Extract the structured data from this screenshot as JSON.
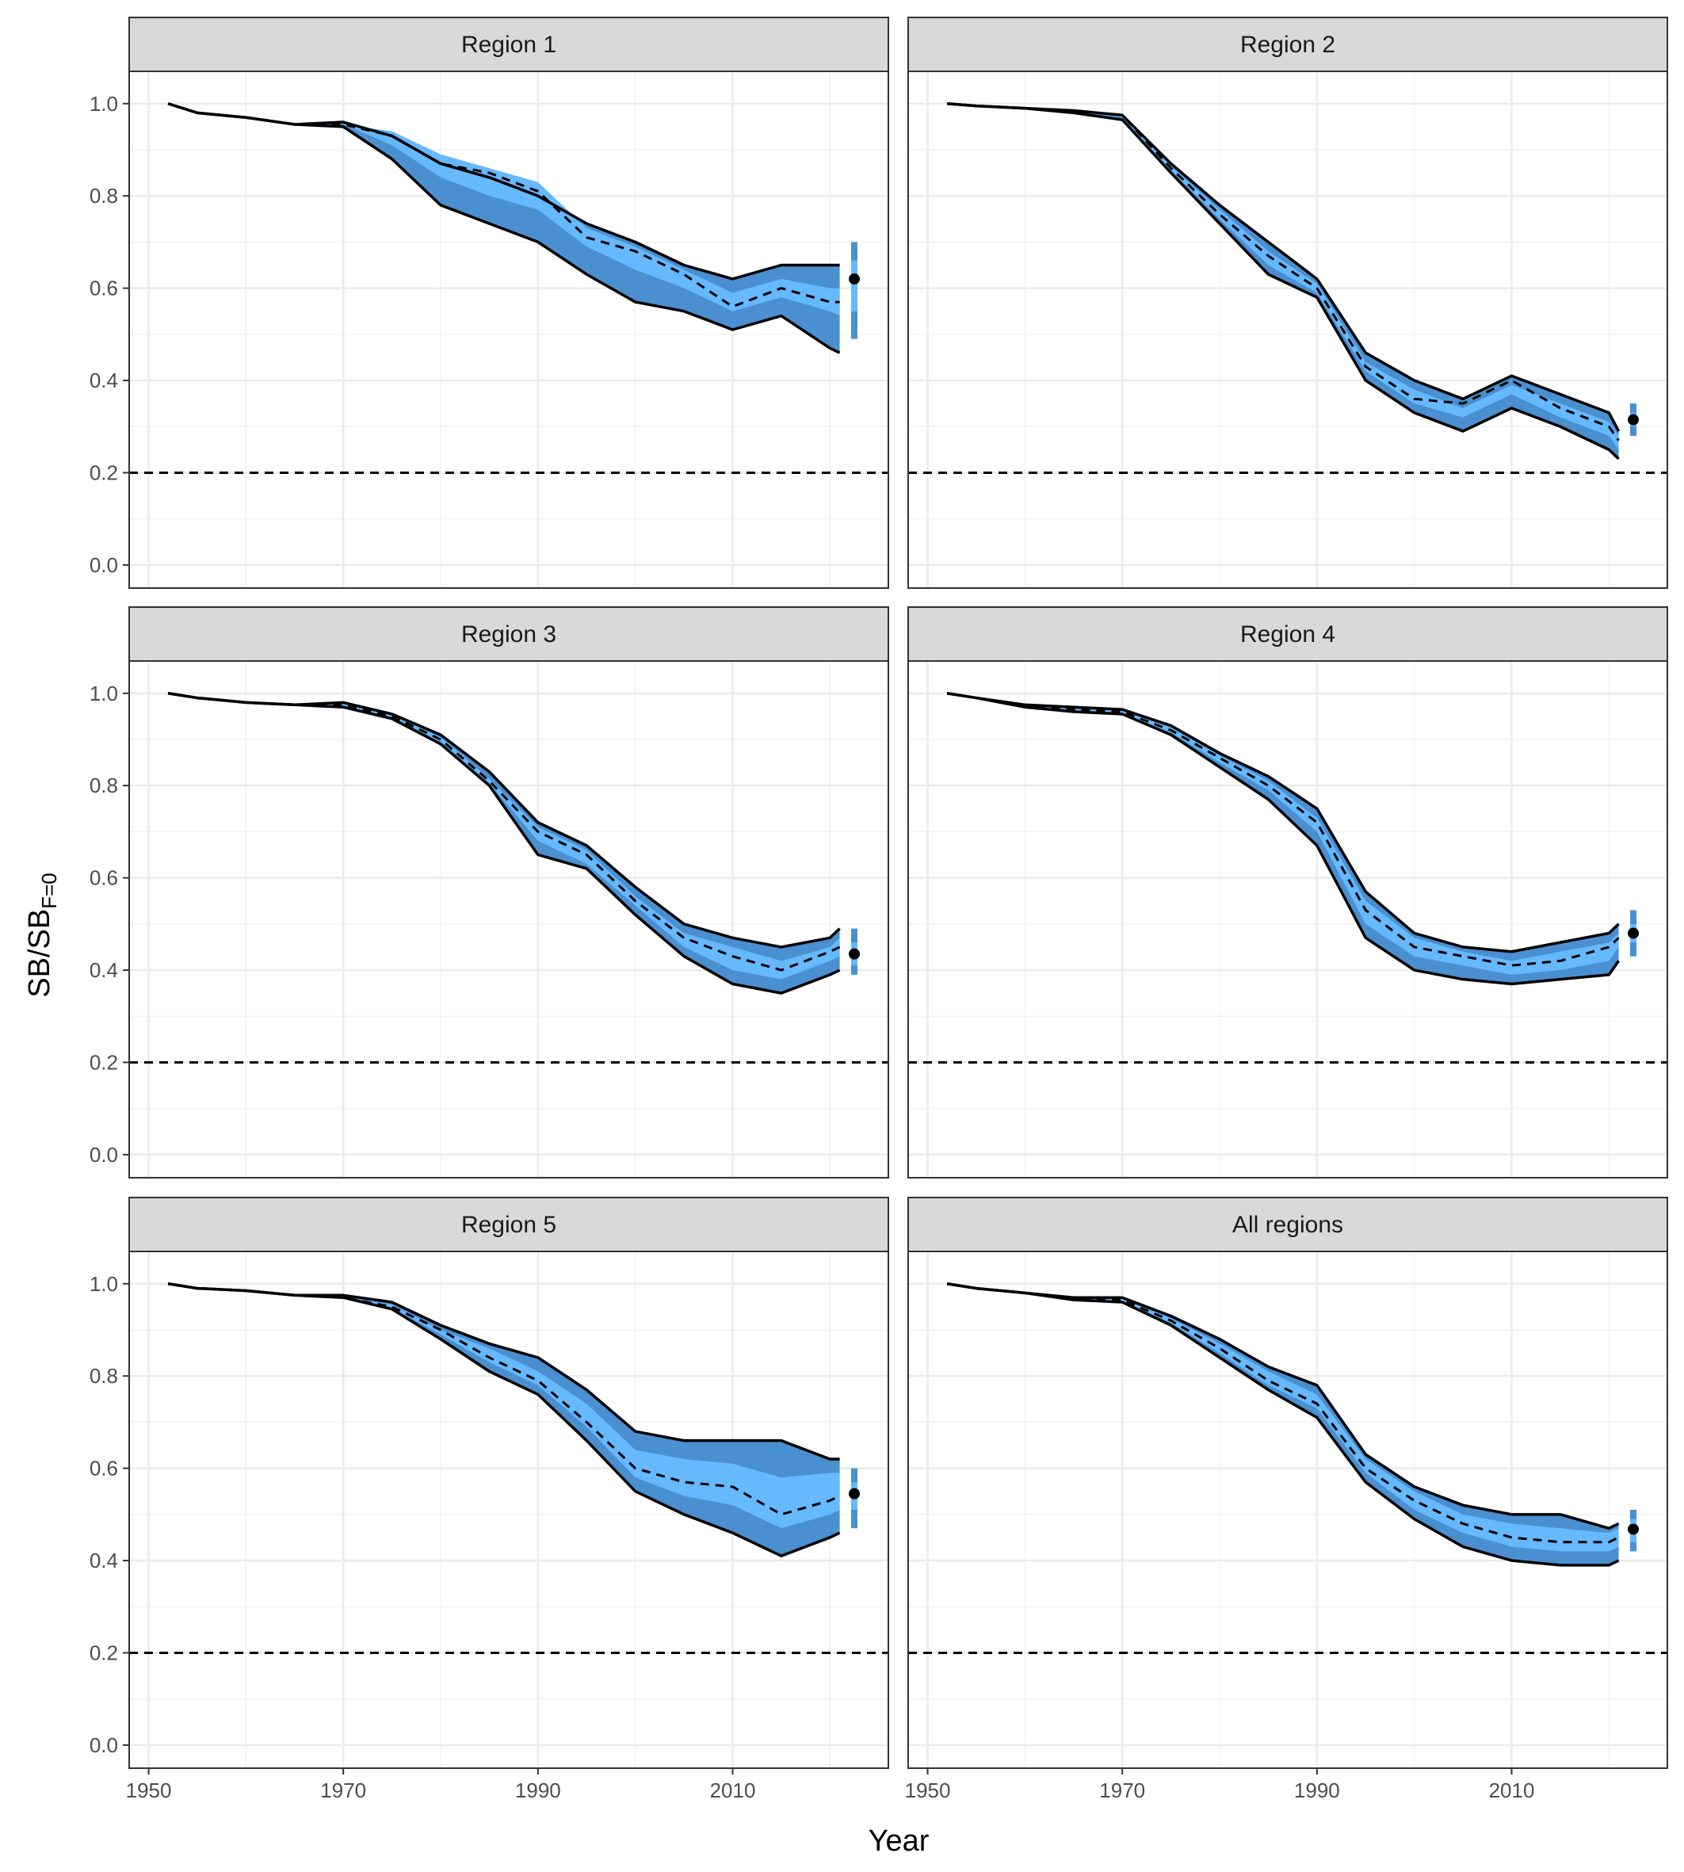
{
  "chart_data": {
    "type": "line",
    "layout": "facet grid, 3 rows x 2 columns, shared x axis (bottom) and y axis (left)",
    "xlabel": "Year",
    "ylabel": {
      "main": "SB/SB",
      "subscript": "F=0"
    },
    "xlim": [
      1948,
      2026
    ],
    "ylim": [
      -0.05,
      1.07
    ],
    "x_ticks": [
      1950,
      1970,
      1990,
      2010
    ],
    "x_tick_labels": [
      "1950",
      "1970",
      "1990",
      "2010"
    ],
    "y_ticks": [
      0.0,
      0.2,
      0.4,
      0.6,
      0.8,
      1.0
    ],
    "y_tick_labels": [
      "0.0",
      "0.2",
      "0.4",
      "0.6",
      "0.8",
      "1.0"
    ],
    "grid": true,
    "reference_line": {
      "y": 0.2,
      "style": "dashed"
    },
    "colors": {
      "outer_band": "#4a8fd0",
      "inner_band": "#66b8ff",
      "outline": "#000000",
      "median": "#000000",
      "strip_bg": "#d9d9d9",
      "grid": "#ebebeb",
      "panel_border": "#333333",
      "point": "#000000",
      "point_bar_outer": "#4a8fd0",
      "point_bar_inner": "#66b8ff"
    },
    "series_x": [
      1952,
      1955,
      1960,
      1965,
      1970,
      1975,
      1980,
      1985,
      1990,
      1995,
      2000,
      2005,
      2010,
      2015,
      2020,
      2021
    ],
    "panels": [
      {
        "title": "Region 1",
        "median": [
          1.0,
          0.98,
          0.97,
          0.955,
          0.955,
          0.93,
          0.87,
          0.85,
          0.81,
          0.71,
          0.68,
          0.63,
          0.56,
          0.6,
          0.57,
          0.57
        ],
        "outer_lo": [
          1.0,
          0.98,
          0.97,
          0.955,
          0.95,
          0.88,
          0.78,
          0.74,
          0.7,
          0.63,
          0.57,
          0.55,
          0.51,
          0.54,
          0.47,
          0.46
        ],
        "outer_hi": [
          1.0,
          0.98,
          0.97,
          0.955,
          0.96,
          0.93,
          0.87,
          0.84,
          0.8,
          0.74,
          0.7,
          0.65,
          0.62,
          0.65,
          0.65,
          0.65
        ],
        "inner_lo": [
          1.0,
          0.98,
          0.97,
          0.955,
          0.955,
          0.91,
          0.84,
          0.8,
          0.77,
          0.69,
          0.64,
          0.6,
          0.55,
          0.58,
          0.55,
          0.54
        ],
        "inner_hi": [
          1.0,
          0.98,
          0.97,
          0.955,
          0.955,
          0.94,
          0.89,
          0.86,
          0.83,
          0.73,
          0.69,
          0.64,
          0.59,
          0.62,
          0.6,
          0.6
        ],
        "point": {
          "x": 2022.5,
          "y": 0.62,
          "outer": [
            0.49,
            0.7
          ],
          "inner": [
            0.55,
            0.66
          ]
        }
      },
      {
        "title": "Region 2",
        "median": [
          1.0,
          0.995,
          0.99,
          0.985,
          0.975,
          0.86,
          0.76,
          0.67,
          0.6,
          0.43,
          0.36,
          0.35,
          0.4,
          0.34,
          0.3,
          0.27
        ],
        "outer_lo": [
          1.0,
          0.995,
          0.99,
          0.98,
          0.965,
          0.85,
          0.74,
          0.63,
          0.58,
          0.4,
          0.33,
          0.29,
          0.34,
          0.3,
          0.25,
          0.23
        ],
        "outer_hi": [
          1.0,
          0.995,
          0.99,
          0.985,
          0.975,
          0.87,
          0.78,
          0.7,
          0.62,
          0.46,
          0.4,
          0.36,
          0.41,
          0.37,
          0.33,
          0.29
        ],
        "inner_lo": [
          1.0,
          0.995,
          0.99,
          0.982,
          0.97,
          0.855,
          0.75,
          0.65,
          0.59,
          0.42,
          0.35,
          0.32,
          0.37,
          0.32,
          0.28,
          0.25
        ],
        "inner_hi": [
          1.0,
          0.995,
          0.99,
          0.985,
          0.975,
          0.865,
          0.77,
          0.68,
          0.61,
          0.44,
          0.38,
          0.34,
          0.39,
          0.35,
          0.31,
          0.28
        ],
        "point": {
          "x": 2022.5,
          "y": 0.315,
          "outer": [
            0.28,
            0.35
          ],
          "inner": [
            0.3,
            0.33
          ]
        }
      },
      {
        "title": "Region 3",
        "median": [
          1.0,
          0.99,
          0.98,
          0.975,
          0.975,
          0.95,
          0.9,
          0.81,
          0.7,
          0.65,
          0.55,
          0.47,
          0.43,
          0.4,
          0.44,
          0.45
        ],
        "outer_lo": [
          1.0,
          0.99,
          0.98,
          0.975,
          0.97,
          0.945,
          0.89,
          0.8,
          0.65,
          0.62,
          0.52,
          0.43,
          0.37,
          0.35,
          0.39,
          0.4
        ],
        "outer_hi": [
          1.0,
          0.99,
          0.98,
          0.975,
          0.98,
          0.955,
          0.91,
          0.83,
          0.72,
          0.67,
          0.58,
          0.5,
          0.47,
          0.45,
          0.47,
          0.49
        ],
        "inner_lo": [
          1.0,
          0.99,
          0.98,
          0.975,
          0.972,
          0.948,
          0.895,
          0.805,
          0.68,
          0.63,
          0.54,
          0.45,
          0.4,
          0.38,
          0.42,
          0.43
        ],
        "inner_hi": [
          1.0,
          0.99,
          0.98,
          0.975,
          0.978,
          0.952,
          0.905,
          0.815,
          0.71,
          0.66,
          0.56,
          0.48,
          0.45,
          0.42,
          0.45,
          0.47
        ],
        "point": {
          "x": 2022.5,
          "y": 0.435,
          "outer": [
            0.39,
            0.49
          ],
          "inner": [
            0.41,
            0.46
          ]
        }
      },
      {
        "title": "Region 4",
        "median": [
          1.0,
          0.99,
          0.97,
          0.965,
          0.96,
          0.92,
          0.86,
          0.8,
          0.72,
          0.53,
          0.45,
          0.43,
          0.41,
          0.42,
          0.45,
          0.47
        ],
        "outer_lo": [
          1.0,
          0.99,
          0.97,
          0.96,
          0.955,
          0.91,
          0.84,
          0.77,
          0.67,
          0.47,
          0.4,
          0.38,
          0.37,
          0.38,
          0.39,
          0.42
        ],
        "outer_hi": [
          1.0,
          0.99,
          0.975,
          0.97,
          0.965,
          0.93,
          0.87,
          0.82,
          0.75,
          0.57,
          0.48,
          0.45,
          0.44,
          0.46,
          0.48,
          0.5
        ],
        "inner_lo": [
          1.0,
          0.99,
          0.97,
          0.963,
          0.958,
          0.915,
          0.85,
          0.79,
          0.7,
          0.5,
          0.43,
          0.41,
          0.39,
          0.4,
          0.42,
          0.45
        ],
        "inner_hi": [
          1.0,
          0.99,
          0.972,
          0.967,
          0.962,
          0.925,
          0.865,
          0.81,
          0.73,
          0.55,
          0.47,
          0.44,
          0.42,
          0.44,
          0.46,
          0.48
        ],
        "point": {
          "x": 2022.5,
          "y": 0.48,
          "outer": [
            0.43,
            0.53
          ],
          "inner": [
            0.46,
            0.5
          ]
        }
      },
      {
        "title": "Region 5",
        "median": [
          1.0,
          0.99,
          0.985,
          0.975,
          0.97,
          0.95,
          0.9,
          0.84,
          0.79,
          0.7,
          0.6,
          0.57,
          0.56,
          0.5,
          0.53,
          0.54
        ],
        "outer_lo": [
          1.0,
          0.99,
          0.985,
          0.975,
          0.97,
          0.945,
          0.88,
          0.81,
          0.76,
          0.66,
          0.55,
          0.5,
          0.46,
          0.41,
          0.45,
          0.46
        ],
        "outer_hi": [
          1.0,
          0.99,
          0.985,
          0.975,
          0.975,
          0.96,
          0.91,
          0.87,
          0.84,
          0.77,
          0.68,
          0.66,
          0.66,
          0.66,
          0.62,
          0.62
        ],
        "inner_lo": [
          1.0,
          0.99,
          0.985,
          0.975,
          0.97,
          0.948,
          0.89,
          0.83,
          0.78,
          0.69,
          0.58,
          0.54,
          0.52,
          0.47,
          0.5,
          0.51
        ],
        "inner_hi": [
          1.0,
          0.99,
          0.985,
          0.975,
          0.972,
          0.955,
          0.9,
          0.86,
          0.81,
          0.74,
          0.64,
          0.62,
          0.61,
          0.58,
          0.59,
          0.59
        ],
        "point": {
          "x": 2022.5,
          "y": 0.545,
          "outer": [
            0.47,
            0.6
          ],
          "inner": [
            0.51,
            0.57
          ]
        }
      },
      {
        "title": "All regions",
        "median": [
          1.0,
          0.99,
          0.98,
          0.97,
          0.965,
          0.92,
          0.86,
          0.79,
          0.74,
          0.6,
          0.53,
          0.48,
          0.45,
          0.44,
          0.44,
          0.45
        ],
        "outer_lo": [
          1.0,
          0.99,
          0.98,
          0.965,
          0.96,
          0.91,
          0.84,
          0.77,
          0.71,
          0.57,
          0.49,
          0.43,
          0.4,
          0.39,
          0.39,
          0.4
        ],
        "outer_hi": [
          1.0,
          0.99,
          0.98,
          0.97,
          0.97,
          0.93,
          0.88,
          0.82,
          0.78,
          0.63,
          0.56,
          0.52,
          0.5,
          0.5,
          0.47,
          0.48
        ],
        "inner_lo": [
          1.0,
          0.99,
          0.98,
          0.968,
          0.963,
          0.915,
          0.85,
          0.78,
          0.73,
          0.59,
          0.51,
          0.46,
          0.43,
          0.42,
          0.42,
          0.43
        ],
        "inner_hi": [
          1.0,
          0.99,
          0.98,
          0.972,
          0.967,
          0.925,
          0.87,
          0.81,
          0.76,
          0.62,
          0.55,
          0.5,
          0.48,
          0.47,
          0.46,
          0.47
        ],
        "point": {
          "x": 2022.5,
          "y": 0.468,
          "outer": [
            0.42,
            0.51
          ],
          "inner": [
            0.44,
            0.49
          ]
        }
      }
    ]
  }
}
